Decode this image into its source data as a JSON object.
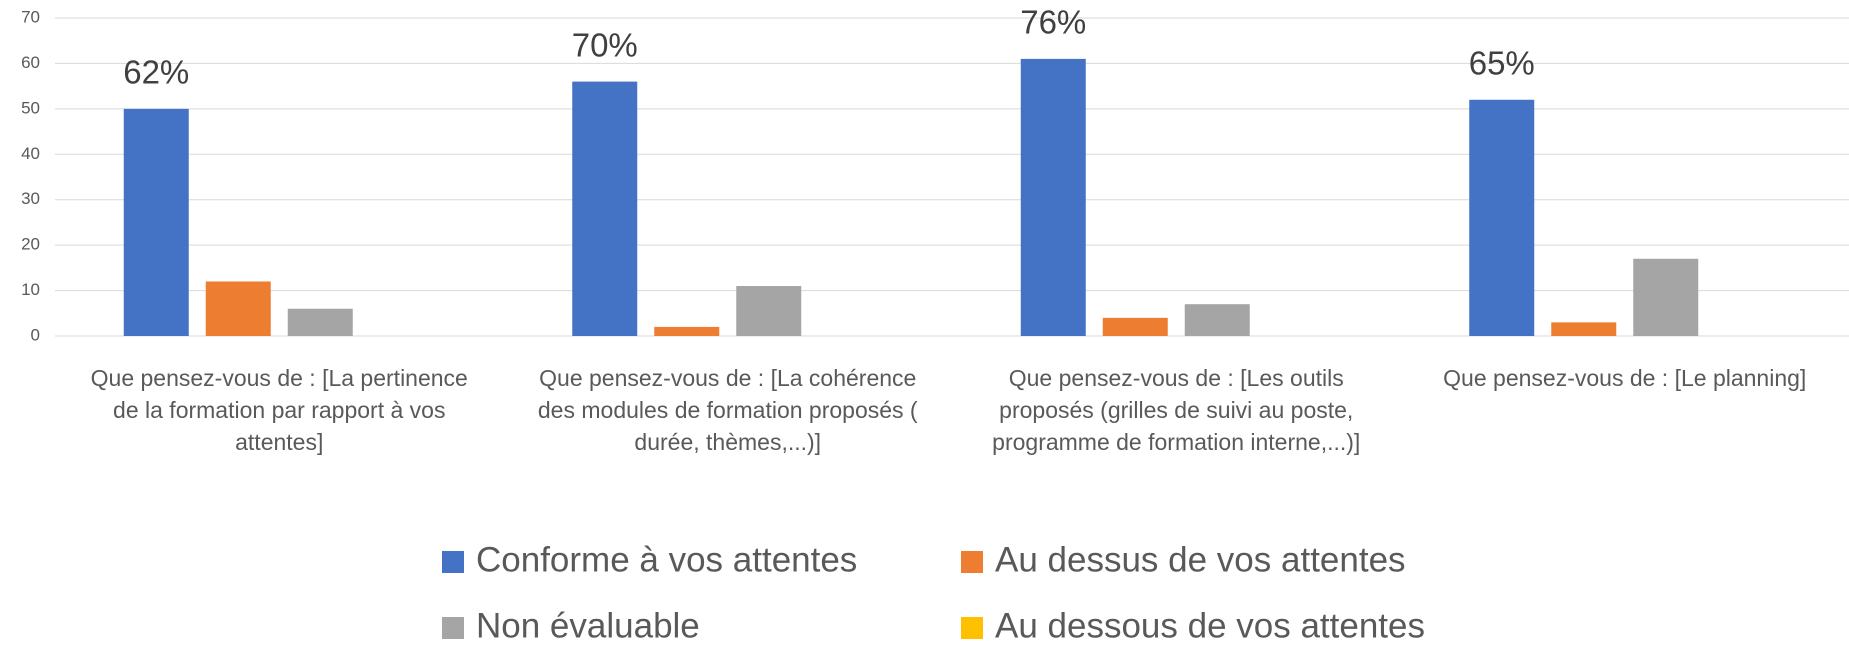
{
  "chart_data": {
    "type": "bar",
    "categories": [
      "Que pensez-vous de : [La pertinence de la formation par rapport à vos attentes]",
      "Que pensez-vous de : [La cohérence des modules de formation proposés ( durée, thèmes,...)]",
      "Que pensez-vous de : [Les outils proposés (grilles de suivi au poste, programme de formation interne,...)]",
      "Que pensez-vous de : [Le planning]"
    ],
    "series": [
      {
        "name": "Conforme à vos attentes",
        "color": "#4472c4",
        "values": [
          50,
          56,
          61,
          52
        ]
      },
      {
        "name": "Au dessus de vos attentes",
        "color": "#ed7d31",
        "values": [
          12,
          2,
          4,
          3
        ]
      },
      {
        "name": "Non évaluable",
        "color": "#a5a5a5",
        "values": [
          6,
          11,
          7,
          17
        ]
      },
      {
        "name": "Au dessous de vos attentes",
        "color": "#ffc000",
        "values": [
          0,
          0,
          0,
          0
        ]
      }
    ],
    "annotations": [
      "62%",
      "70%",
      "76%",
      "65%"
    ],
    "ylim": [
      0,
      70
    ],
    "yticks": [
      0,
      10,
      20,
      30,
      40,
      50,
      60,
      70
    ],
    "grid": true
  }
}
